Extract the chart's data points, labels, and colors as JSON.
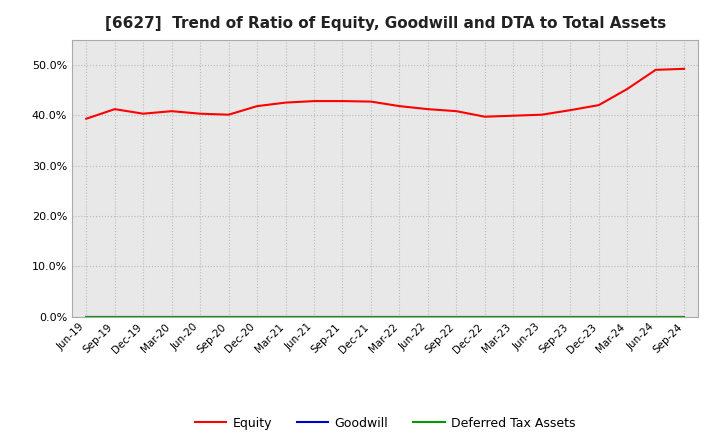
{
  "title": "[6627]  Trend of Ratio of Equity, Goodwill and DTA to Total Assets",
  "x_labels": [
    "Jun-19",
    "Sep-19",
    "Dec-19",
    "Mar-20",
    "Jun-20",
    "Sep-20",
    "Dec-20",
    "Mar-21",
    "Jun-21",
    "Sep-21",
    "Dec-21",
    "Mar-22",
    "Jun-22",
    "Sep-22",
    "Dec-22",
    "Mar-23",
    "Jun-23",
    "Sep-23",
    "Dec-23",
    "Mar-24",
    "Jun-24",
    "Sep-24"
  ],
  "equity": [
    0.393,
    0.412,
    0.403,
    0.408,
    0.403,
    0.401,
    0.418,
    0.425,
    0.428,
    0.428,
    0.427,
    0.418,
    0.412,
    0.408,
    0.397,
    0.399,
    0.401,
    0.41,
    0.42,
    0.452,
    0.49,
    0.492
  ],
  "goodwill": [
    0.0,
    0.0,
    0.0,
    0.0,
    0.0,
    0.0,
    0.0,
    0.0,
    0.0,
    0.0,
    0.0,
    0.0,
    0.0,
    0.0,
    0.0,
    0.0,
    0.0,
    0.0,
    0.0,
    0.0,
    0.0,
    0.0
  ],
  "dta": [
    0.0,
    0.0,
    0.0,
    0.0,
    0.0,
    0.0,
    0.0,
    0.0,
    0.0,
    0.0,
    0.0,
    0.0,
    0.0,
    0.0,
    0.0,
    0.0,
    0.0,
    0.0,
    0.0,
    0.0,
    0.0,
    0.0
  ],
  "equity_color": "#FF0000",
  "goodwill_color": "#0000CC",
  "dta_color": "#009900",
  "ylim": [
    0.0,
    0.55
  ],
  "yticks": [
    0.0,
    0.1,
    0.2,
    0.3,
    0.4,
    0.5
  ],
  "background_color": "#FFFFFF",
  "plot_bg_color": "#E8E8E8",
  "grid_color": "#BBBBBB",
  "title_fontsize": 11,
  "legend_labels": [
    "Equity",
    "Goodwill",
    "Deferred Tax Assets"
  ]
}
